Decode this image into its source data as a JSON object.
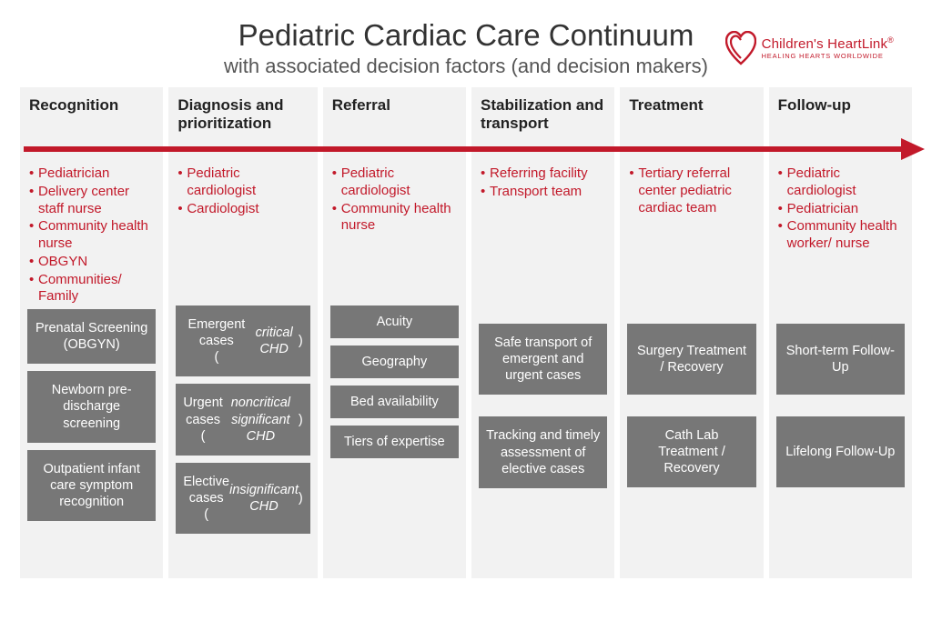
{
  "title": "Pediatric Cardiac Care Continuum",
  "subtitle": "with associated decision factors (and decision makers)",
  "logo": {
    "brand": "Children's HeartLink",
    "tagline": "HEALING HEARTS WORLDWIDE",
    "color": "#c2192a"
  },
  "arrow_color": "#c2192a",
  "maker_text_color": "#c2192a",
  "factor_box_bg": "#777777",
  "factor_box_text": "#ffffff",
  "column_bg": "#f2f2f2",
  "columns": [
    {
      "header": "Recognition",
      "makers": [
        "Pediatrician",
        "Delivery center staff nurse",
        "Community health nurse",
        "OBGYN",
        "Communities/ Family"
      ],
      "factors": [
        {
          "text": "Prenatal Screening (OBGYN)"
        },
        {
          "text": "Newborn pre-discharge screening"
        },
        {
          "text": "Outpatient infant care symptom recognition"
        }
      ]
    },
    {
      "header": "Diagnosis and prioritization",
      "makers": [
        "Pediatric cardiologist",
        "Cardiologist"
      ],
      "factors": [
        {
          "html": "Emergent cases<br>(<span class=\"italic\">critical CHD</span>)"
        },
        {
          "html": "Urgent cases<br>(<span class=\"italic\">noncritical significant CHD</span>)"
        },
        {
          "html": "Elective cases<br>(<span class=\"italic\">insignificant CHD</span>)"
        }
      ]
    },
    {
      "header": "Referral",
      "makers": [
        "Pediatric cardiologist",
        "Community health nurse"
      ],
      "factors": [
        {
          "text": "Acuity"
        },
        {
          "text": "Geography"
        },
        {
          "text": "Bed availability"
        },
        {
          "text": "Tiers of expertise"
        }
      ]
    },
    {
      "header": "Stabilization and transport",
      "makers": [
        "Referring facility",
        "Transport team"
      ],
      "factors": [
        {
          "text": "Safe transport of emergent and urgent cases"
        },
        {
          "text": "Tracking and timely assessment of elective cases"
        }
      ]
    },
    {
      "header": "Treatment",
      "makers": [
        "Tertiary referral center pediatric cardiac team"
      ],
      "factors": [
        {
          "text": "Surgery Treatment / Recovery"
        },
        {
          "text": "Cath Lab Treatment / Recovery"
        }
      ]
    },
    {
      "header": "Follow-up",
      "makers": [
        "Pediatric cardiologist",
        "Pediatrician",
        "Community health worker/ nurse"
      ],
      "factors": [
        {
          "text": "Short-term Follow-Up"
        },
        {
          "text": "Lifelong Follow-Up"
        }
      ]
    }
  ]
}
